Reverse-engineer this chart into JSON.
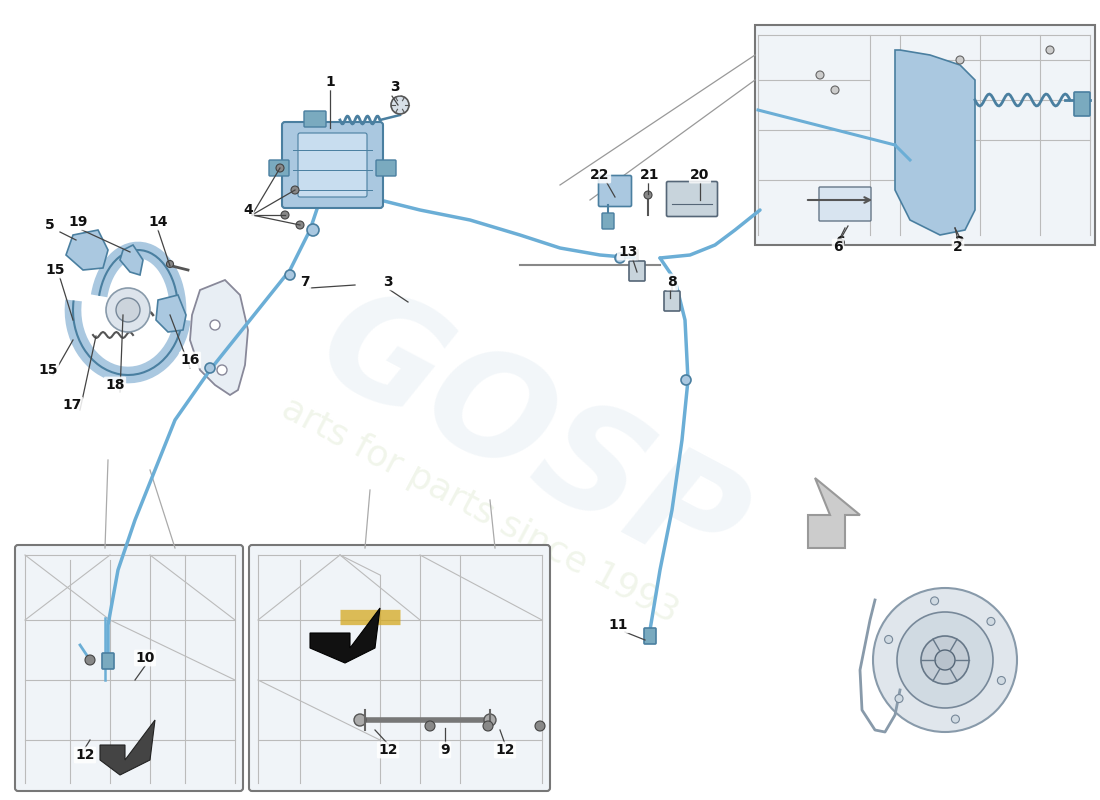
{
  "bg_color": "#ffffff",
  "cable_color": "#6baed6",
  "cable_lw": 2.5,
  "part_fill": "#aac8e0",
  "part_edge": "#4a7fa0",
  "part_lw": 1.2,
  "dark_fill": "#7aaabf",
  "gray_fill": "#c8d4dc",
  "gray_edge": "#556677",
  "label_fs": 10,
  "label_color": "#111111",
  "leader_color": "#444444",
  "leader_lw": 0.9,
  "inset_edge": "#666666",
  "inset_fill": "#f8fafc",
  "frame_color": "#aaaaaa",
  "frame_lw": 0.9,
  "watermark_logo": [
    0.78,
    0.85,
    0.9,
    0.22
  ],
  "watermark_text": [
    0.8,
    0.87,
    0.72,
    0.28
  ]
}
